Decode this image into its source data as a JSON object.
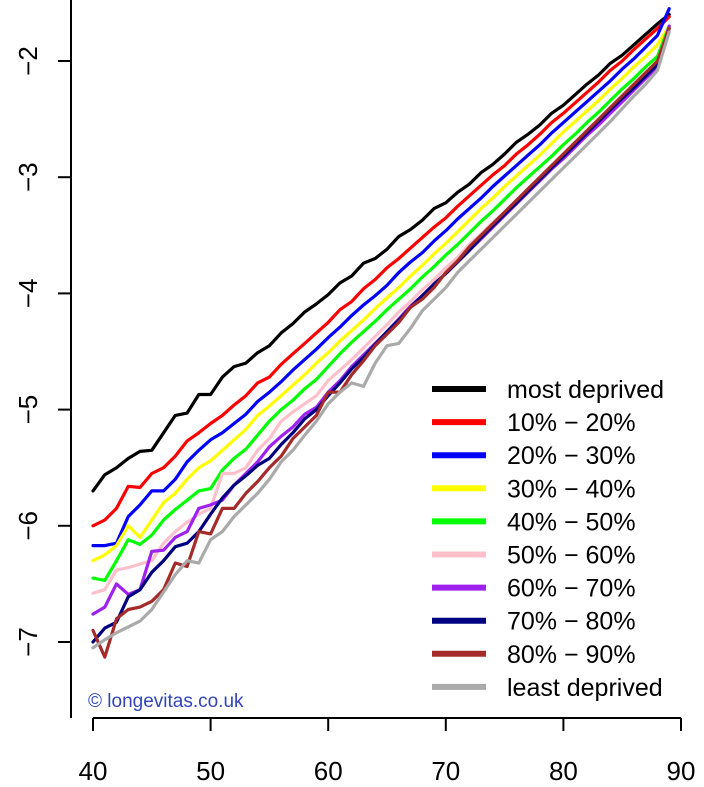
{
  "chart_data": {
    "type": "line",
    "xlim": [
      40,
      90
    ],
    "ylim": [
      -7.6,
      -1.5
    ],
    "x_ticks": [
      40,
      50,
      60,
      70,
      80,
      90
    ],
    "y_ticks": [
      -7,
      -6,
      -5,
      -4,
      -3,
      -2
    ],
    "grid": false,
    "legend_position": "bottom-right",
    "watermark": "© longevitas.co.uk",
    "x": [
      40,
      41,
      42,
      43,
      44,
      45,
      46,
      47,
      48,
      49,
      50,
      51,
      52,
      53,
      54,
      55,
      56,
      57,
      58,
      59,
      60,
      61,
      62,
      63,
      64,
      65,
      66,
      67,
      68,
      69,
      70,
      71,
      72,
      73,
      74,
      75,
      76,
      77,
      78,
      79,
      80,
      81,
      82,
      83,
      84,
      85,
      86,
      87,
      88,
      89
    ],
    "series": [
      {
        "name": "most deprived",
        "color": "#000000",
        "values": [
          -5.7,
          -5.56,
          -5.5,
          -5.42,
          -5.36,
          -5.35,
          -5.2,
          -5.05,
          -5.03,
          -4.87,
          -4.87,
          -4.72,
          -4.63,
          -4.6,
          -4.51,
          -4.45,
          -4.34,
          -4.26,
          -4.16,
          -4.09,
          -4.01,
          -3.91,
          -3.85,
          -3.74,
          -3.7,
          -3.62,
          -3.51,
          -3.45,
          -3.37,
          -3.27,
          -3.22,
          -3.13,
          -3.06,
          -2.96,
          -2.89,
          -2.8,
          -2.7,
          -2.63,
          -2.55,
          -2.45,
          -2.38,
          -2.29,
          -2.2,
          -2.12,
          -2.02,
          -1.95,
          -1.86,
          -1.77,
          -1.68,
          -1.6
        ]
      },
      {
        "name": "10% − 20%",
        "color": "#ff0000",
        "values": [
          -6.0,
          -5.95,
          -5.85,
          -5.66,
          -5.67,
          -5.55,
          -5.5,
          -5.4,
          -5.27,
          -5.2,
          -5.12,
          -5.05,
          -4.96,
          -4.88,
          -4.77,
          -4.72,
          -4.61,
          -4.52,
          -4.43,
          -4.34,
          -4.25,
          -4.14,
          -4.07,
          -3.96,
          -3.88,
          -3.78,
          -3.7,
          -3.61,
          -3.52,
          -3.43,
          -3.35,
          -3.25,
          -3.16,
          -3.07,
          -2.98,
          -2.9,
          -2.8,
          -2.72,
          -2.63,
          -2.53,
          -2.45,
          -2.36,
          -2.27,
          -2.18,
          -2.08,
          -2.0,
          -1.9,
          -1.81,
          -1.72,
          -1.62
        ]
      },
      {
        "name": "20% − 30%",
        "color": "#0000ff",
        "values": [
          -6.17,
          -6.17,
          -6.15,
          -5.92,
          -5.82,
          -5.7,
          -5.7,
          -5.6,
          -5.45,
          -5.35,
          -5.26,
          -5.2,
          -5.12,
          -5.04,
          -4.93,
          -4.85,
          -4.76,
          -4.66,
          -4.57,
          -4.48,
          -4.38,
          -4.29,
          -4.19,
          -4.1,
          -4.02,
          -3.93,
          -3.82,
          -3.73,
          -3.65,
          -3.55,
          -3.46,
          -3.36,
          -3.27,
          -3.18,
          -3.08,
          -2.99,
          -2.9,
          -2.81,
          -2.72,
          -2.62,
          -2.53,
          -2.44,
          -2.35,
          -2.26,
          -2.17,
          -2.07,
          -1.98,
          -1.88,
          -1.78,
          -1.55
        ]
      },
      {
        "name": "30% − 40%",
        "color": "#ffff00",
        "values": [
          -6.3,
          -6.25,
          -6.17,
          -6.0,
          -6.1,
          -5.95,
          -5.8,
          -5.72,
          -5.6,
          -5.5,
          -5.44,
          -5.35,
          -5.26,
          -5.17,
          -5.05,
          -4.97,
          -4.88,
          -4.79,
          -4.7,
          -4.6,
          -4.51,
          -4.41,
          -4.32,
          -4.23,
          -4.13,
          -4.04,
          -3.95,
          -3.85,
          -3.76,
          -3.66,
          -3.57,
          -3.47,
          -3.37,
          -3.27,
          -3.18,
          -3.08,
          -2.99,
          -2.9,
          -2.81,
          -2.71,
          -2.61,
          -2.52,
          -2.43,
          -2.34,
          -2.24,
          -2.15,
          -2.05,
          -1.96,
          -1.86,
          -1.7
        ]
      },
      {
        "name": "40% − 50%",
        "color": "#00ff00",
        "values": [
          -6.45,
          -6.47,
          -6.3,
          -6.12,
          -6.16,
          -6.08,
          -5.95,
          -5.86,
          -5.78,
          -5.7,
          -5.68,
          -5.52,
          -5.42,
          -5.34,
          -5.22,
          -5.1,
          -5.0,
          -4.92,
          -4.82,
          -4.74,
          -4.63,
          -4.52,
          -4.42,
          -4.33,
          -4.24,
          -4.14,
          -4.05,
          -3.96,
          -3.86,
          -3.77,
          -3.67,
          -3.58,
          -3.48,
          -3.38,
          -3.29,
          -3.19,
          -3.09,
          -3.0,
          -2.91,
          -2.82,
          -2.72,
          -2.63,
          -2.53,
          -2.44,
          -2.34,
          -2.24,
          -2.15,
          -2.05,
          -1.96,
          -1.7
        ]
      },
      {
        "name": "50% − 60%",
        "color": "#ffc0cb",
        "values": [
          -6.58,
          -6.55,
          -6.38,
          -6.36,
          -6.33,
          -6.3,
          -6.15,
          -6.05,
          -5.97,
          -5.9,
          -5.85,
          -5.55,
          -5.55,
          -5.5,
          -5.35,
          -5.25,
          -5.1,
          -5.02,
          -4.95,
          -4.88,
          -4.75,
          -4.66,
          -4.57,
          -4.47,
          -4.37,
          -4.27,
          -4.16,
          -4.07,
          -3.97,
          -3.88,
          -3.78,
          -3.69,
          -3.58,
          -3.49,
          -3.39,
          -3.3,
          -3.2,
          -3.1,
          -3.01,
          -2.91,
          -2.82,
          -2.72,
          -2.63,
          -2.54,
          -2.44,
          -2.34,
          -2.24,
          -2.15,
          -2.05,
          -1.7
        ]
      },
      {
        "name": "60% − 70%",
        "color": "#a020f0",
        "values": [
          -6.76,
          -6.7,
          -6.5,
          -6.59,
          -6.55,
          -6.22,
          -6.21,
          -6.1,
          -6.05,
          -5.85,
          -5.82,
          -5.78,
          -5.65,
          -5.55,
          -5.45,
          -5.32,
          -5.23,
          -5.15,
          -5.04,
          -4.98,
          -4.85,
          -4.75,
          -4.63,
          -4.53,
          -4.43,
          -4.33,
          -4.22,
          -4.11,
          -4.02,
          -3.92,
          -3.83,
          -3.73,
          -3.63,
          -3.53,
          -3.43,
          -3.33,
          -3.23,
          -3.13,
          -3.03,
          -2.93,
          -2.84,
          -2.74,
          -2.64,
          -2.55,
          -2.45,
          -2.35,
          -2.25,
          -2.15,
          -2.05,
          -1.7
        ]
      },
      {
        "name": "70% − 80%",
        "color": "#000080",
        "values": [
          -7.0,
          -6.88,
          -6.83,
          -6.61,
          -6.55,
          -6.4,
          -6.3,
          -6.18,
          -6.15,
          -6.05,
          -5.9,
          -5.76,
          -5.65,
          -5.57,
          -5.48,
          -5.42,
          -5.3,
          -5.2,
          -5.08,
          -5.0,
          -4.88,
          -4.77,
          -4.65,
          -4.55,
          -4.44,
          -4.33,
          -4.23,
          -4.12,
          -4.02,
          -3.92,
          -3.83,
          -3.73,
          -3.63,
          -3.52,
          -3.42,
          -3.32,
          -3.22,
          -3.12,
          -3.02,
          -2.92,
          -2.82,
          -2.72,
          -2.62,
          -2.52,
          -2.42,
          -2.32,
          -2.23,
          -2.13,
          -2.03,
          -1.72
        ]
      },
      {
        "name": "80% − 90%",
        "color": "#a52a2a",
        "values": [
          -6.9,
          -7.13,
          -6.8,
          -6.72,
          -6.7,
          -6.65,
          -6.55,
          -6.32,
          -6.35,
          -6.05,
          -6.07,
          -5.85,
          -5.85,
          -5.72,
          -5.62,
          -5.5,
          -5.4,
          -5.25,
          -5.15,
          -5.05,
          -4.85,
          -4.85,
          -4.7,
          -4.58,
          -4.45,
          -4.35,
          -4.25,
          -4.12,
          -4.05,
          -3.95,
          -3.82,
          -3.72,
          -3.6,
          -3.5,
          -3.4,
          -3.3,
          -3.2,
          -3.1,
          -3.0,
          -2.9,
          -2.8,
          -2.7,
          -2.6,
          -2.5,
          -2.4,
          -2.3,
          -2.2,
          -2.1,
          -2.0,
          -1.72
        ]
      },
      {
        "name": "least deprived",
        "color": "#aaaaaa",
        "values": [
          -7.05,
          -6.98,
          -6.92,
          -6.87,
          -6.82,
          -6.72,
          -6.57,
          -6.42,
          -6.3,
          -6.32,
          -6.12,
          -6.05,
          -5.92,
          -5.82,
          -5.72,
          -5.6,
          -5.45,
          -5.35,
          -5.22,
          -5.1,
          -4.95,
          -4.85,
          -4.77,
          -4.8,
          -4.6,
          -4.45,
          -4.43,
          -4.3,
          -4.15,
          -4.05,
          -3.95,
          -3.82,
          -3.72,
          -3.62,
          -3.52,
          -3.42,
          -3.32,
          -3.22,
          -3.12,
          -3.02,
          -2.92,
          -2.82,
          -2.72,
          -2.62,
          -2.52,
          -2.41,
          -2.3,
          -2.2,
          -2.08,
          -1.75
        ]
      }
    ]
  }
}
